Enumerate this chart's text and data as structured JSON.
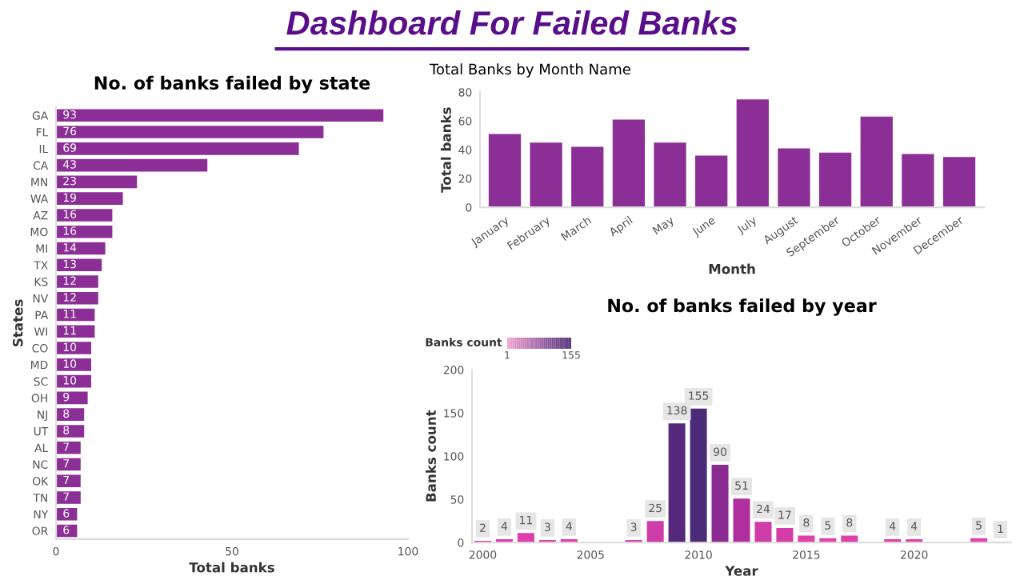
{
  "chart_data": [
    {
      "type": "other",
      "title": "Dashboard For Failed Banks"
    },
    {
      "type": "bar",
      "orientation": "horizontal",
      "title": "No. of banks failed by state",
      "xlabel": "Total banks",
      "ylabel": "States",
      "categories": [
        "GA",
        "FL",
        "IL",
        "CA",
        "MN",
        "WA",
        "AZ",
        "MO",
        "MI",
        "TX",
        "KS",
        "NV",
        "PA",
        "WI",
        "CO",
        "MD",
        "SC",
        "OH",
        "NJ",
        "UT",
        "AL",
        "NC",
        "OK",
        "TN",
        "NY",
        "OR"
      ],
      "values": [
        93,
        76,
        69,
        43,
        23,
        19,
        16,
        16,
        14,
        13,
        12,
        12,
        11,
        11,
        10,
        10,
        10,
        9,
        8,
        8,
        7,
        7,
        7,
        7,
        6,
        6
      ],
      "color": "#8b2f96",
      "xlim": [
        0,
        100
      ],
      "xticks": [
        0,
        50,
        100
      ],
      "data_labels": true,
      "grid": false
    },
    {
      "type": "bar",
      "title": "Total Banks by Month Name",
      "xlabel": "Month",
      "ylabel": "Total banks",
      "categories": [
        "January",
        "February",
        "March",
        "April",
        "May",
        "June",
        "July",
        "August",
        "September",
        "October",
        "November",
        "December"
      ],
      "values": [
        51,
        45,
        42,
        61,
        45,
        36,
        75,
        41,
        38,
        63,
        37,
        35
      ],
      "color": "#8b2f96",
      "ylim": [
        0,
        80
      ],
      "yticks": [
        0,
        20,
        40,
        60,
        80
      ],
      "grid": false
    },
    {
      "type": "bar",
      "title": "No. of banks failed by year",
      "xlabel": "Year",
      "ylabel": "Banks count",
      "clabel": "Banks count",
      "x": [
        2000,
        2001,
        2002,
        2003,
        2004,
        2007,
        2008,
        2009,
        2010,
        2011,
        2012,
        2013,
        2014,
        2015,
        2016,
        2017,
        2019,
        2020,
        2023,
        2024
      ],
      "values": [
        2,
        4,
        11,
        3,
        4,
        3,
        25,
        138,
        155,
        90,
        51,
        24,
        17,
        8,
        5,
        8,
        4,
        4,
        5,
        1
      ],
      "colors": [
        "#e043aa",
        "#e043aa",
        "#dc40aa",
        "#e043aa",
        "#e043aa",
        "#e043aa",
        "#cf3ba8",
        "#55287e",
        "#4b2a78",
        "#8a2a90",
        "#b02f9e",
        "#cf3ba8",
        "#d63ca8",
        "#de41aa",
        "#e043aa",
        "#de41aa",
        "#e043aa",
        "#e043aa",
        "#e043aa",
        "#f0a0d0"
      ],
      "clim": [
        1,
        155
      ],
      "cticks": [
        1,
        155
      ],
      "xlim": [
        1999.5,
        2024.5
      ],
      "xticks": [
        2000,
        2005,
        2010,
        2015,
        2020
      ],
      "ylim": [
        0,
        200
      ],
      "yticks": [
        0,
        50,
        100,
        150,
        200
      ],
      "data_labels": true,
      "grid": false
    }
  ]
}
